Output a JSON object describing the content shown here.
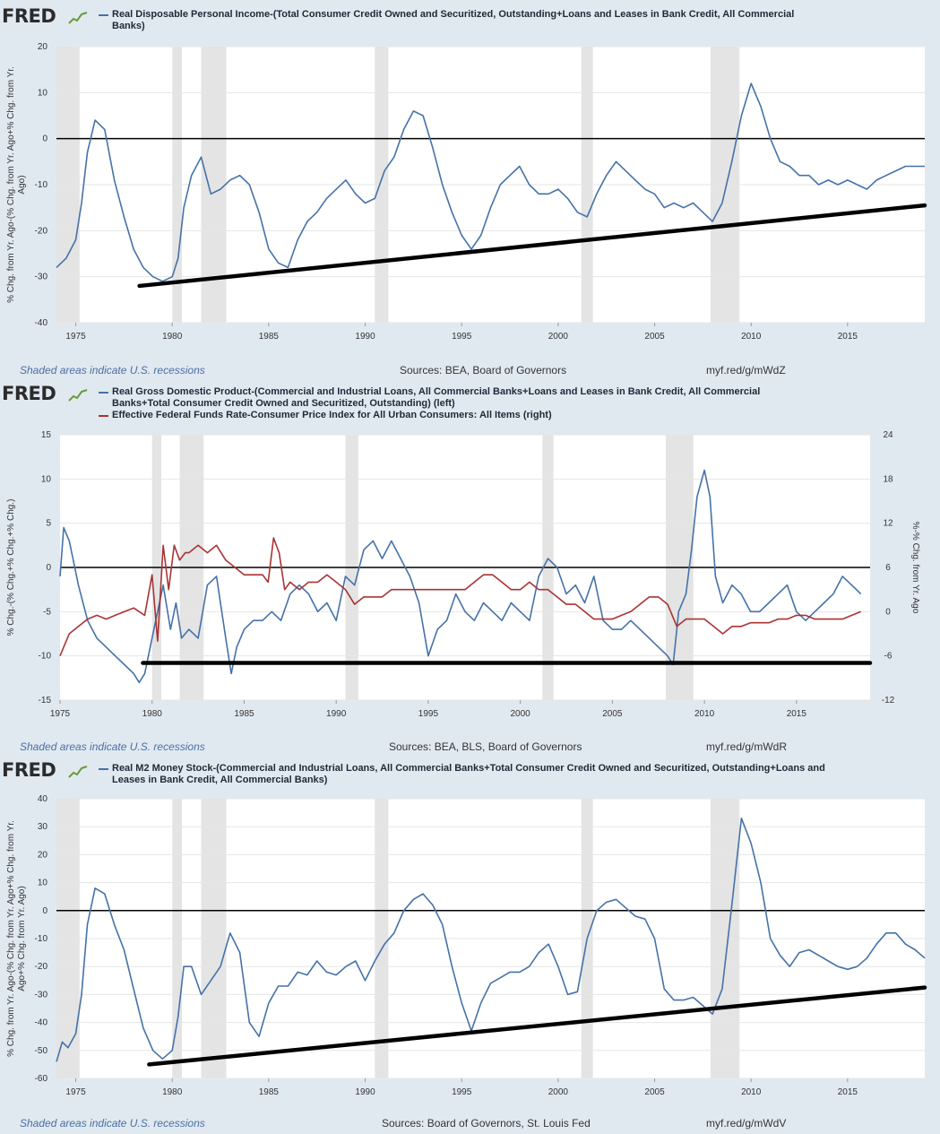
{
  "brand": "FRED",
  "chart_data": [
    {
      "type": "line",
      "title": "Real Disposable Personal Income-(Total Consumer Credit Owned and Securitized, Outstanding+Loans and Leases in Bank Credit, All Commercial Banks)",
      "title_lines": [
        "Real Disposable Personal Income-(Total Consumer Credit Owned and Securitized, Outstanding+Loans and Leases in Bank Credit, All Commercial",
        "Banks)"
      ],
      "ylabel_lines": [
        "% Chg. from Yr. Ago-(% Chg. from Yr. Ago+% Chg. from Yr.",
        "Ago)"
      ],
      "xlim": [
        1974,
        2019
      ],
      "ylim": [
        -40,
        20
      ],
      "yticks": [
        20,
        10,
        0,
        -10,
        -20,
        -30,
        -40
      ],
      "xticks": [
        1975,
        1980,
        1985,
        1990,
        1995,
        2000,
        2005,
        2010,
        2015
      ],
      "recessions": [
        [
          1973.9,
          1975.2
        ],
        [
          1980.0,
          1980.5
        ],
        [
          1981.5,
          1982.8
        ],
        [
          1990.5,
          1991.2
        ],
        [
          2001.2,
          2001.8
        ],
        [
          2007.9,
          2009.4
        ]
      ],
      "zero_line": 0,
      "trendline": {
        "x": [
          1978.3,
          2019.0
        ],
        "y": [
          -32,
          -14.5
        ]
      },
      "series": [
        {
          "name": "Real Disposable Personal Income-(Total Consumer Credit ...)",
          "color": "#4572a7",
          "x": [
            1974.0,
            1974.5,
            1975.0,
            1975.3,
            1975.6,
            1976.0,
            1976.5,
            1977.0,
            1977.5,
            1978.0,
            1978.5,
            1979.0,
            1979.5,
            1980.0,
            1980.3,
            1980.6,
            1981.0,
            1981.5,
            1982.0,
            1982.5,
            1983.0,
            1983.5,
            1984.0,
            1984.5,
            1985.0,
            1985.5,
            1986.0,
            1986.5,
            1987.0,
            1987.5,
            1988.0,
            1988.5,
            1989.0,
            1989.5,
            1990.0,
            1990.5,
            1991.0,
            1991.5,
            1992.0,
            1992.5,
            1993.0,
            1993.5,
            1994.0,
            1994.5,
            1995.0,
            1995.5,
            1996.0,
            1996.5,
            1997.0,
            1997.5,
            1998.0,
            1998.5,
            1999.0,
            1999.5,
            2000.0,
            2000.5,
            2001.0,
            2001.5,
            2002.0,
            2002.5,
            2003.0,
            2003.5,
            2004.0,
            2004.5,
            2005.0,
            2005.5,
            2006.0,
            2006.5,
            2007.0,
            2007.5,
            2008.0,
            2008.5,
            2009.0,
            2009.5,
            2010.0,
            2010.5,
            2011.0,
            2011.5,
            2012.0,
            2012.5,
            2013.0,
            2013.5,
            2014.0,
            2014.5,
            2015.0,
            2015.5,
            2016.0,
            2016.5,
            2017.0,
            2017.5,
            2018.0,
            2018.5,
            2019.0
          ],
          "y": [
            -28,
            -26,
            -22,
            -14,
            -3,
            4,
            2,
            -9,
            -17,
            -24,
            -28,
            -30,
            -31,
            -30,
            -26,
            -15,
            -8,
            -4,
            -12,
            -11,
            -9,
            -8,
            -10,
            -16,
            -24,
            -27,
            -28,
            -22,
            -18,
            -16,
            -13,
            -11,
            -9,
            -12,
            -14,
            -13,
            -7,
            -4,
            2,
            6,
            5,
            -2,
            -10,
            -16,
            -21,
            -24,
            -21,
            -15,
            -10,
            -8,
            -6,
            -10,
            -12,
            -12,
            -11,
            -13,
            -16,
            -17,
            -12,
            -8,
            -5,
            -7,
            -9,
            -11,
            -12,
            -15,
            -14,
            -15,
            -14,
            -16,
            -18,
            -14,
            -5,
            5,
            12,
            7,
            0,
            -5,
            -6,
            -8,
            -8,
            -10,
            -9,
            -10,
            -9,
            -10,
            -11,
            -9,
            -8,
            -7,
            -6,
            -6,
            -6
          ]
        }
      ],
      "sources": "Sources: BEA, Board of Governors",
      "shaded_note": "Shaded areas indicate U.S. recessions",
      "short_url": "myf.red/g/mWdZ"
    },
    {
      "type": "line",
      "title_lines": [
        "Real Gross Domestic Product-(Commercial and Industrial Loans, All Commercial Banks+Loans and Leases in Bank Credit, All Commercial",
        "Banks+Total Consumer Credit Owned and Securitized, Outstanding) (left)"
      ],
      "title2": "Effective Federal Funds Rate-Consumer Price Index for All Urban Consumers: All Items (right)",
      "ylabel": "% Chg.-(% Chg.+% Chg.+% Chg.)",
      "y2label": "%-% Chg. from Yr. Ago",
      "xlim": [
        1975,
        2019
      ],
      "ylim": [
        -15,
        15
      ],
      "y2lim": [
        -12,
        24
      ],
      "yticks": [
        15,
        10,
        5,
        0,
        -5,
        -10,
        -15
      ],
      "y2ticks": [
        24,
        18,
        12,
        6,
        0,
        -6,
        -12
      ],
      "xticks": [
        1975,
        1980,
        1985,
        1990,
        1995,
        2000,
        2005,
        2010,
        2015
      ],
      "recessions": [
        [
          1980.0,
          1980.5
        ],
        [
          1981.5,
          1982.8
        ],
        [
          1990.5,
          1991.2
        ],
        [
          2001.2,
          2001.8
        ],
        [
          2007.9,
          2009.4
        ]
      ],
      "zero_line": 0,
      "trendline": {
        "x": [
          1979.5,
          2019.0
        ],
        "y": [
          -10.8,
          -10.8
        ]
      },
      "series": [
        {
          "name": "Real Gross Domestic Product-(... ) (left)",
          "color": "#4572a7",
          "axis": "left",
          "x": [
            1975.0,
            1975.2,
            1975.5,
            1976.0,
            1976.5,
            1977.0,
            1977.5,
            1978.0,
            1978.5,
            1979.0,
            1979.3,
            1979.6,
            1980.0,
            1980.3,
            1980.6,
            1981.0,
            1981.3,
            1981.6,
            1982.0,
            1982.5,
            1983.0,
            1983.5,
            1984.0,
            1984.3,
            1984.6,
            1985.0,
            1985.5,
            1986.0,
            1986.5,
            1987.0,
            1987.5,
            1988.0,
            1988.5,
            1989.0,
            1989.5,
            1990.0,
            1990.5,
            1991.0,
            1991.5,
            1992.0,
            1992.5,
            1993.0,
            1993.5,
            1994.0,
            1994.5,
            1995.0,
            1995.5,
            1996.0,
            1996.5,
            1997.0,
            1997.5,
            1998.0,
            1998.5,
            1999.0,
            1999.5,
            2000.0,
            2000.5,
            2001.0,
            2001.5,
            2002.0,
            2002.5,
            2003.0,
            2003.5,
            2004.0,
            2004.5,
            2005.0,
            2005.5,
            2006.0,
            2006.5,
            2007.0,
            2007.5,
            2008.0,
            2008.3,
            2008.6,
            2009.0,
            2009.3,
            2009.6,
            2010.0,
            2010.3,
            2010.6,
            2011.0,
            2011.5,
            2012.0,
            2012.5,
            2013.0,
            2013.5,
            2014.0,
            2014.5,
            2015.0,
            2015.5,
            2016.0,
            2016.5,
            2017.0,
            2017.5,
            2018.0,
            2018.5
          ],
          "y": [
            -1,
            4.5,
            3,
            -2,
            -6,
            -8,
            -9,
            -10,
            -11,
            -12,
            -13,
            -12,
            -8,
            -5,
            -2,
            -7,
            -4,
            -8,
            -7,
            -8,
            -2,
            -1,
            -8,
            -12,
            -9,
            -7,
            -6,
            -6,
            -5,
            -6,
            -3,
            -2,
            -3,
            -5,
            -4,
            -6,
            -1,
            -2,
            2,
            3,
            1,
            3,
            1,
            -1,
            -4,
            -10,
            -7,
            -6,
            -3,
            -5,
            -6,
            -4,
            -5,
            -6,
            -4,
            -5,
            -6,
            -1,
            1,
            0,
            -3,
            -2,
            -4,
            -1,
            -6,
            -7,
            -7,
            -6,
            -7,
            -8,
            -9,
            -10,
            -11,
            -5,
            -3,
            2,
            8,
            11,
            8,
            -1,
            -4,
            -2,
            -3,
            -5,
            -5,
            -4,
            -3,
            -2,
            -5,
            -6,
            -5,
            -4,
            -3,
            -1,
            -2,
            -3
          ]
        },
        {
          "name": "Effective Federal Funds Rate-Consumer Price Index ... (right)",
          "color": "#aa3333",
          "axis": "right",
          "x": [
            1975.0,
            1975.5,
            1976.0,
            1976.5,
            1977.0,
            1977.5,
            1978.0,
            1978.5,
            1979.0,
            1979.3,
            1979.6,
            1980.0,
            1980.3,
            1980.6,
            1980.9,
            1981.2,
            1981.5,
            1981.8,
            1982.0,
            1982.5,
            1983.0,
            1983.5,
            1984.0,
            1984.5,
            1985.0,
            1985.5,
            1986.0,
            1986.3,
            1986.6,
            1986.9,
            1987.2,
            1987.5,
            1988.0,
            1988.5,
            1989.0,
            1989.5,
            1990.0,
            1990.5,
            1991.0,
            1991.5,
            1992.0,
            1992.5,
            1993.0,
            1993.5,
            1994.0,
            1994.5,
            1995.0,
            1995.5,
            1996.0,
            1996.5,
            1997.0,
            1997.5,
            1998.0,
            1998.5,
            1999.0,
            1999.5,
            2000.0,
            2000.5,
            2001.0,
            2001.5,
            2002.0,
            2002.5,
            2003.0,
            2003.5,
            2004.0,
            2004.5,
            2005.0,
            2005.5,
            2006.0,
            2006.5,
            2007.0,
            2007.5,
            2008.0,
            2008.5,
            2009.0,
            2009.5,
            2010.0,
            2010.5,
            2011.0,
            2011.5,
            2012.0,
            2012.5,
            2013.0,
            2013.5,
            2014.0,
            2014.5,
            2015.0,
            2015.5,
            2016.0,
            2016.5,
            2017.0,
            2017.5,
            2018.0,
            2018.5
          ],
          "y": [
            -6,
            -3,
            -2,
            -1,
            -0.5,
            -1,
            -0.5,
            0,
            0.5,
            0,
            -0.5,
            5,
            -4,
            9,
            3,
            9,
            7,
            8,
            8,
            9,
            8,
            9,
            7,
            6,
            5,
            5,
            5,
            4,
            10,
            8,
            3,
            4,
            3,
            4,
            4,
            5,
            4,
            3,
            1,
            2,
            2,
            2,
            3,
            3,
            3,
            3,
            3,
            3,
            3,
            3,
            3,
            4,
            5,
            5,
            4,
            3,
            3,
            4,
            3,
            3,
            2,
            1,
            1,
            0,
            -1,
            -1,
            -1,
            -0.5,
            0,
            1,
            2,
            2,
            1,
            -2,
            -1,
            -1,
            -1,
            -2,
            -3,
            -2,
            -2,
            -1.5,
            -1.5,
            -1.5,
            -1,
            -1,
            -0.5,
            -0.5,
            -1,
            -1,
            -1,
            -1,
            -0.5,
            0
          ]
        }
      ],
      "sources": "Sources: BEA, BLS, Board of Governors",
      "shaded_note": "Shaded areas indicate U.S. recessions",
      "short_url": "myf.red/g/mWdR"
    },
    {
      "type": "line",
      "title_lines": [
        "Real M2 Money Stock-(Commercial and Industrial Loans, All Commercial Banks+Total Consumer Credit Owned and Securitized, Outstanding+Loans and",
        "Leases in Bank Credit, All Commercial Banks)"
      ],
      "ylabel_lines": [
        "% Chg. from Yr. Ago-(% Chg. from Yr. Ago+% Chg. from Yr.",
        "Ago+% Chg. from Yr. Ago)"
      ],
      "xlim": [
        1974,
        2019
      ],
      "ylim": [
        -60,
        40
      ],
      "yticks": [
        40,
        30,
        20,
        10,
        0,
        -10,
        -20,
        -30,
        -40,
        -50,
        -60
      ],
      "xticks": [
        1975,
        1980,
        1985,
        1990,
        1995,
        2000,
        2005,
        2010,
        2015
      ],
      "recessions": [
        [
          1973.9,
          1975.2
        ],
        [
          1980.0,
          1980.5
        ],
        [
          1981.5,
          1982.8
        ],
        [
          1990.5,
          1991.2
        ],
        [
          2001.2,
          2001.8
        ],
        [
          2007.9,
          2009.4
        ]
      ],
      "zero_line": 0,
      "trendline": {
        "x": [
          1978.8,
          2019.0
        ],
        "y": [
          -55,
          -27.5
        ]
      },
      "series": [
        {
          "name": "Real M2 Money Stock-(...)",
          "color": "#4572a7",
          "x": [
            1974.0,
            1974.3,
            1974.6,
            1975.0,
            1975.3,
            1975.6,
            1976.0,
            1976.5,
            1977.0,
            1977.5,
            1978.0,
            1978.5,
            1979.0,
            1979.5,
            1980.0,
            1980.3,
            1980.6,
            1981.0,
            1981.5,
            1982.0,
            1982.5,
            1983.0,
            1983.5,
            1984.0,
            1984.5,
            1985.0,
            1985.5,
            1986.0,
            1986.5,
            1987.0,
            1987.5,
            1988.0,
            1988.5,
            1989.0,
            1989.5,
            1990.0,
            1990.5,
            1991.0,
            1991.5,
            1992.0,
            1992.5,
            1993.0,
            1993.5,
            1994.0,
            1994.5,
            1995.0,
            1995.5,
            1996.0,
            1996.5,
            1997.0,
            1997.5,
            1998.0,
            1998.5,
            1999.0,
            1999.5,
            2000.0,
            2000.5,
            2001.0,
            2001.5,
            2002.0,
            2002.5,
            2003.0,
            2003.5,
            2004.0,
            2004.5,
            2005.0,
            2005.5,
            2006.0,
            2006.5,
            2007.0,
            2007.5,
            2008.0,
            2008.5,
            2009.0,
            2009.5,
            2010.0,
            2010.5,
            2011.0,
            2011.5,
            2012.0,
            2012.5,
            2013.0,
            2013.5,
            2014.0,
            2014.5,
            2015.0,
            2015.5,
            2016.0,
            2016.5,
            2017.0,
            2017.5,
            2018.0,
            2018.5,
            2019.0
          ],
          "y": [
            -54,
            -47,
            -49,
            -44,
            -30,
            -5,
            8,
            6,
            -5,
            -14,
            -28,
            -42,
            -50,
            -53,
            -50,
            -38,
            -20,
            -20,
            -30,
            -25,
            -20,
            -8,
            -15,
            -40,
            -45,
            -33,
            -27,
            -27,
            -22,
            -23,
            -18,
            -22,
            -23,
            -20,
            -18,
            -25,
            -18,
            -12,
            -8,
            0,
            4,
            6,
            2,
            -5,
            -20,
            -33,
            -43,
            -33,
            -26,
            -24,
            -22,
            -22,
            -20,
            -15,
            -12,
            -20,
            -30,
            -29,
            -10,
            0,
            3,
            4,
            1,
            -2,
            -3,
            -10,
            -28,
            -32,
            -32,
            -31,
            -34,
            -37,
            -28,
            2,
            33,
            24,
            10,
            -10,
            -16,
            -20,
            -15,
            -14,
            -16,
            -18,
            -20,
            -21,
            -20,
            -17,
            -12,
            -8,
            -8,
            -12,
            -14,
            -17
          ]
        }
      ],
      "sources": "Sources: Board of Governors, St. Louis Fed",
      "shaded_note": "Shaded areas indicate U.S. recessions",
      "short_url": "myf.red/g/mWdV"
    }
  ]
}
